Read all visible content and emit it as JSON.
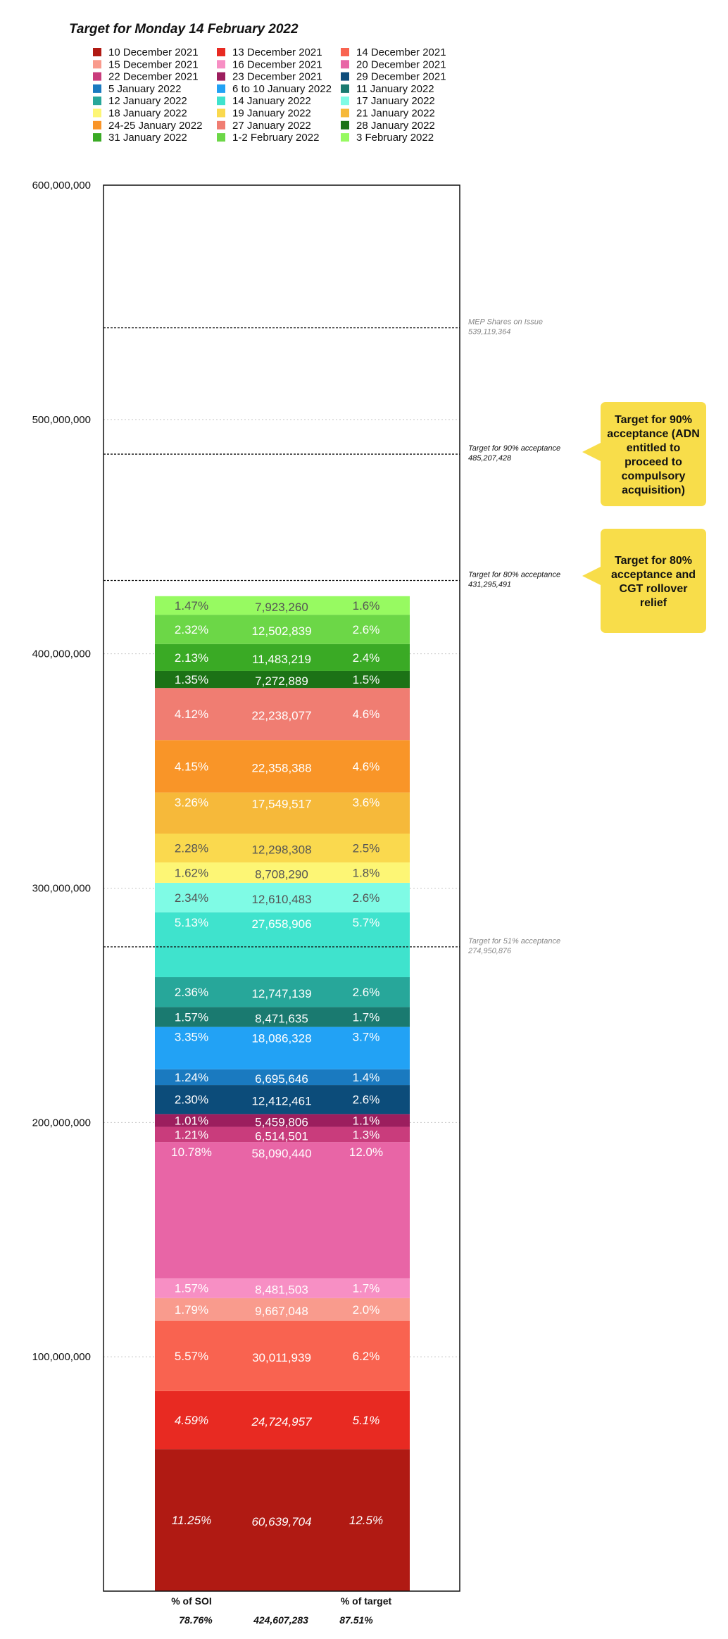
{
  "chart_data": {
    "type": "bar",
    "title": "Target for Monday 14 February 2022",
    "ylim": [
      0,
      600000000
    ],
    "yticks": [
      "100,000,000",
      "200,000,000",
      "300,000,000",
      "400,000,000",
      "500,000,000",
      "600,000,000"
    ],
    "ytick_values": [
      100000000,
      200000000,
      300000000,
      400000000,
      500000000,
      600000000
    ],
    "grid": "horizontal dotted",
    "legend_position": "top",
    "legend": [
      {
        "label": "10 December 2021",
        "color": "#B01A13"
      },
      {
        "label": "13 December 2021",
        "color": "#E82A22"
      },
      {
        "label": "14 December 2021",
        "color": "#F96350"
      },
      {
        "label": "15 December 2021",
        "color": "#F99B8D"
      },
      {
        "label": "16 December 2021",
        "color": "#F78FC4"
      },
      {
        "label": "20 December 2021",
        "color": "#E865A6"
      },
      {
        "label": "22 December 2021",
        "color": "#C93C7C"
      },
      {
        "label": "23 December 2021",
        "color": "#9C1E5E"
      },
      {
        "label": "29 December 2021",
        "color": "#0C4C7A"
      },
      {
        "label": "5 January 2022",
        "color": "#1A7AC0"
      },
      {
        "label": "6 to 10 January 2022",
        "color": "#22A2F5"
      },
      {
        "label": "11 January 2022",
        "color": "#1A7A70"
      },
      {
        "label": "12 January 2022",
        "color": "#27A79A"
      },
      {
        "label": "14 January 2022",
        "color": "#3FE3CD"
      },
      {
        "label": "17 January 2022",
        "color": "#7FFBE5"
      },
      {
        "label": "18 January 2022",
        "color": "#FDF675"
      },
      {
        "label": "19 January 2022",
        "color": "#FAD94E"
      },
      {
        "label": "21 January 2022",
        "color": "#F6B93A"
      },
      {
        "label": "24-25 January 2022",
        "color": "#F99528"
      },
      {
        "label": "27 January 2022",
        "color": "#F07D72"
      },
      {
        "label": "28 January 2022",
        "color": "#1C7216"
      },
      {
        "label": "31 January 2022",
        "color": "#3AAA25"
      },
      {
        "label": "1-2 February 2022",
        "color": "#6CD747"
      },
      {
        "label": "3 February 2022",
        "color": "#97FA61"
      }
    ],
    "segments": [
      {
        "name": "10 December 2021",
        "value": 60639704,
        "value_label": "60,639,704",
        "pct_soi": "11.25%",
        "pct_target": "12.5%",
        "color": "#B01A13",
        "text_color": "#ffffff",
        "italic": true
      },
      {
        "name": "13 December 2021",
        "value": 24724957,
        "value_label": "24,724,957",
        "pct_soi": "4.59%",
        "pct_target": "5.1%",
        "color": "#E82A22",
        "text_color": "#ffffff",
        "italic": true
      },
      {
        "name": "14 December 2021",
        "value": 30011939,
        "value_label": "30,011,939",
        "pct_soi": "5.57%",
        "pct_target": "6.2%",
        "color": "#F96350",
        "text_color": "#ffffff"
      },
      {
        "name": "15 December 2021",
        "value": 9667048,
        "value_label": "9,667,048",
        "pct_soi": "1.79%",
        "pct_target": "2.0%",
        "color": "#F99B8D",
        "text_color": "#ffffff"
      },
      {
        "name": "16 December 2021",
        "value": 8481503,
        "value_label": "8,481,503",
        "pct_soi": "1.57%",
        "pct_target": "1.7%",
        "color": "#F78FC4",
        "text_color": "#ffffff"
      },
      {
        "name": "20 December 2021",
        "value": 58090440,
        "value_label": "58,090,440",
        "pct_soi": "10.78%",
        "pct_target": "12.0%",
        "color": "#E865A6",
        "text_color": "#ffffff",
        "label_at_top": true
      },
      {
        "name": "22 December 2021",
        "value": 6514501,
        "value_label": "6,514,501",
        "pct_soi": "1.21%",
        "pct_target": "1.3%",
        "color": "#C93C7C",
        "text_color": "#ffffff"
      },
      {
        "name": "23 December 2021",
        "value": 5459806,
        "value_label": "5,459,806",
        "pct_soi": "1.01%",
        "pct_target": "1.1%",
        "color": "#9C1E5E",
        "text_color": "#ffffff"
      },
      {
        "name": "29 December 2021",
        "value": 12412461,
        "value_label": "12,412,461",
        "pct_soi": "2.30%",
        "pct_target": "2.6%",
        "color": "#0C4C7A",
        "text_color": "#ffffff"
      },
      {
        "name": "5 January 2022",
        "value": 6695646,
        "value_label": "6,695,646",
        "pct_soi": "1.24%",
        "pct_target": "1.4%",
        "color": "#1A7AC0",
        "text_color": "#ffffff"
      },
      {
        "name": "6 to 10 January 2022",
        "value": 18086328,
        "value_label": "18,086,328",
        "pct_soi": "3.35%",
        "pct_target": "3.7%",
        "color": "#22A2F5",
        "text_color": "#ffffff",
        "label_at_top": true
      },
      {
        "name": "11 January 2022",
        "value": 8471635,
        "value_label": "8,471,635",
        "pct_soi": "1.57%",
        "pct_target": "1.7%",
        "color": "#1A7A70",
        "text_color": "#ffffff"
      },
      {
        "name": "12 January 2022",
        "value": 12747139,
        "value_label": "12,747,139",
        "pct_soi": "2.36%",
        "pct_target": "2.6%",
        "color": "#27A79A",
        "text_color": "#ffffff"
      },
      {
        "name": "14 January 2022",
        "value": 27658906,
        "value_label": "27,658,906",
        "pct_soi": "5.13%",
        "pct_target": "5.7%",
        "color": "#3FE3CD",
        "text_color": "#ffffff",
        "label_at_top": true
      },
      {
        "name": "17 January 2022",
        "value": 12610483,
        "value_label": "12,610,483",
        "pct_soi": "2.34%",
        "pct_target": "2.6%",
        "color": "#7FFBE5",
        "text_color": "#555555"
      },
      {
        "name": "18 January 2022",
        "value": 8708290,
        "value_label": "8,708,290",
        "pct_soi": "1.62%",
        "pct_target": "1.8%",
        "color": "#FDF675",
        "text_color": "#555555"
      },
      {
        "name": "19 January 2022",
        "value": 12298308,
        "value_label": "12,298,308",
        "pct_soi": "2.28%",
        "pct_target": "2.5%",
        "color": "#FAD94E",
        "text_color": "#555555"
      },
      {
        "name": "21 January 2022",
        "value": 17549517,
        "value_label": "17,549,517",
        "pct_soi": "3.26%",
        "pct_target": "3.6%",
        "color": "#F6B93A",
        "text_color": "#ffffff",
        "label_at_top": true
      },
      {
        "name": "24-25 January 2022",
        "value": 22358388,
        "value_label": "22,358,388",
        "pct_soi": "4.15%",
        "pct_target": "4.6%",
        "color": "#F99528",
        "text_color": "#ffffff"
      },
      {
        "name": "27 January 2022",
        "value": 22238077,
        "value_label": "22,238,077",
        "pct_soi": "4.12%",
        "pct_target": "4.6%",
        "color": "#F07D72",
        "text_color": "#ffffff"
      },
      {
        "name": "28 January 2022",
        "value": 7272889,
        "value_label": "7,272,889",
        "pct_soi": "1.35%",
        "pct_target": "1.5%",
        "color": "#1C7216",
        "text_color": "#ffffff"
      },
      {
        "name": "31 January 2022",
        "value": 11483219,
        "value_label": "11,483,219",
        "pct_soi": "2.13%",
        "pct_target": "2.4%",
        "color": "#3AAA25",
        "text_color": "#ffffff"
      },
      {
        "name": "1-2 February 2022",
        "value": 12502839,
        "value_label": "12,502,839",
        "pct_soi": "2.32%",
        "pct_target": "2.6%",
        "color": "#6CD747",
        "text_color": "#ffffff"
      },
      {
        "name": "3 February 2022",
        "value": 7923260,
        "value_label": "7,923,260",
        "pct_soi": "1.47%",
        "pct_target": "1.6%",
        "color": "#97FA61",
        "text_color": "#555555"
      }
    ],
    "reference_lines": [
      {
        "label": "MEP Shares on Issue",
        "value_label": "539,119,364",
        "value": 539119364,
        "color": "#888888"
      },
      {
        "label": "Target for 90% acceptance",
        "value_label": "485,207,428",
        "value": 485207428,
        "color": "#111111"
      },
      {
        "label": "Target for 80% acceptance",
        "value_label": "431,295,491",
        "value": 431295491,
        "color": "#111111"
      },
      {
        "label": "Target for 51% acceptance",
        "value_label": "274,950,876",
        "value": 274950876,
        "color": "#888888"
      }
    ],
    "callouts": [
      {
        "text_lines": [
          "Target for 90%",
          "acceptance (ADN",
          "entitled to",
          "proceed to",
          "compulsory",
          "acquisition)"
        ],
        "color": "#F8DD4A"
      },
      {
        "text_lines": [
          "Target for 80%",
          "acceptance and",
          "CGT rollover",
          "relief"
        ],
        "color": "#F8DD4A"
      }
    ],
    "footer": {
      "pct_soi_header": "% of SOI",
      "pct_target_header": "% of target",
      "pct_soi_total": "78.76%",
      "total": "424,607,283",
      "pct_target_total": "87.51%"
    }
  }
}
